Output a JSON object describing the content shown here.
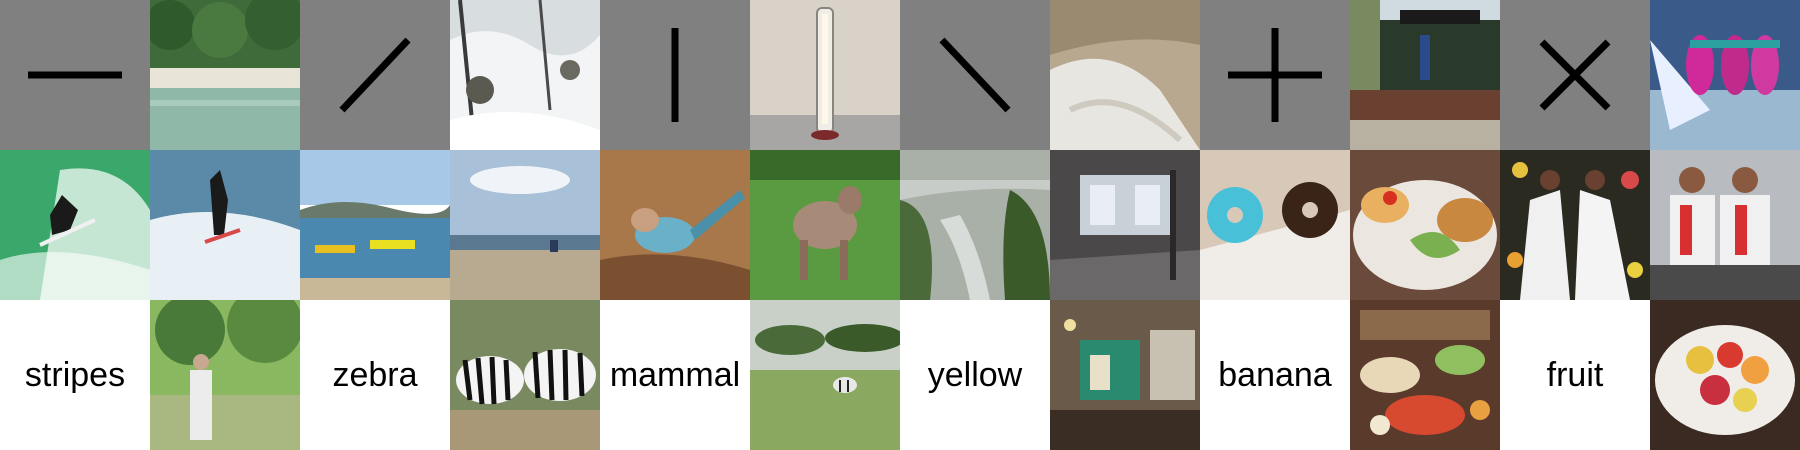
{
  "words": [
    "stripes",
    "zebra",
    "mammal",
    "yellow",
    "banana",
    "fruit"
  ],
  "symbols": [
    "horizontal-line-icon",
    "diagonal-slash-icon",
    "vertical-line-icon",
    "diagonal-backslash-icon",
    "plus-icon",
    "cross-icon"
  ],
  "colors": {
    "symbol_background": "#808080",
    "word_background": "#ffffff",
    "glyph": "#000000"
  }
}
